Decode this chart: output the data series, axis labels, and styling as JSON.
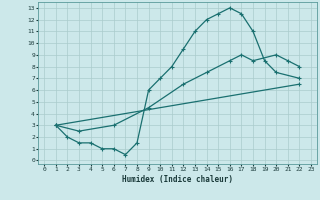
{
  "xlabel": "Humidex (Indice chaleur)",
  "bg_color": "#cce8ea",
  "grid_color": "#aacccc",
  "line_color": "#1a7070",
  "xlim": [
    -0.5,
    23.5
  ],
  "ylim": [
    -0.3,
    13.5
  ],
  "xticks": [
    0,
    1,
    2,
    3,
    4,
    5,
    6,
    7,
    8,
    9,
    10,
    11,
    12,
    13,
    14,
    15,
    16,
    17,
    18,
    19,
    20,
    21,
    22,
    23
  ],
  "yticks": [
    0,
    1,
    2,
    3,
    4,
    5,
    6,
    7,
    8,
    9,
    10,
    11,
    12,
    13
  ],
  "curve1_x": [
    1,
    2,
    3,
    4,
    5,
    6,
    7,
    8,
    9,
    10,
    11,
    12,
    13,
    14,
    15,
    16,
    17,
    18,
    19,
    20,
    22
  ],
  "curve1_y": [
    3,
    2,
    1.5,
    1.5,
    1,
    1,
    0.5,
    1.5,
    6,
    7,
    8,
    9.5,
    11,
    12,
    12.5,
    13,
    12.5,
    11,
    8.5,
    7.5,
    7
  ],
  "curve2_x": [
    1,
    3,
    6,
    9,
    12,
    14,
    16,
    17,
    18,
    20,
    21,
    22
  ],
  "curve2_y": [
    3,
    2.5,
    3,
    4.5,
    6.5,
    7.5,
    8.5,
    9,
    8.5,
    9,
    8.5,
    8
  ],
  "curve3_x": [
    1,
    22
  ],
  "curve3_y": [
    3,
    6.5
  ]
}
